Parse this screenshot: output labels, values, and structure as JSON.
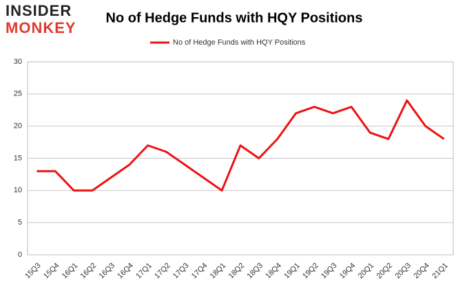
{
  "logo": {
    "top": "INSIDER",
    "bottom": "MONKEY"
  },
  "chart_data": {
    "type": "line",
    "title": "No of Hedge Funds with HQY Positions",
    "categories": [
      "15Q3",
      "15Q4",
      "16Q1",
      "16Q2",
      "16Q3",
      "16Q4",
      "17Q1",
      "17Q2",
      "17Q3",
      "17Q4",
      "18Q1",
      "18Q2",
      "18Q3",
      "18Q4",
      "19Q1",
      "19Q2",
      "19Q3",
      "19Q4",
      "20Q1",
      "20Q2",
      "20Q3",
      "20Q4",
      "21Q1"
    ],
    "series": [
      {
        "name": "No of Hedge Funds with HQY Positions",
        "color": "#ee1111",
        "values": [
          13,
          13,
          10,
          10,
          12,
          14,
          17,
          16,
          14,
          12,
          10,
          17,
          15,
          18,
          22,
          23,
          22,
          23,
          19,
          18,
          24,
          20,
          18
        ]
      }
    ],
    "ylim": [
      0,
      30
    ],
    "yticks": [
      0,
      5,
      10,
      15,
      20,
      25,
      30
    ],
    "grid": true,
    "legend": "top"
  }
}
